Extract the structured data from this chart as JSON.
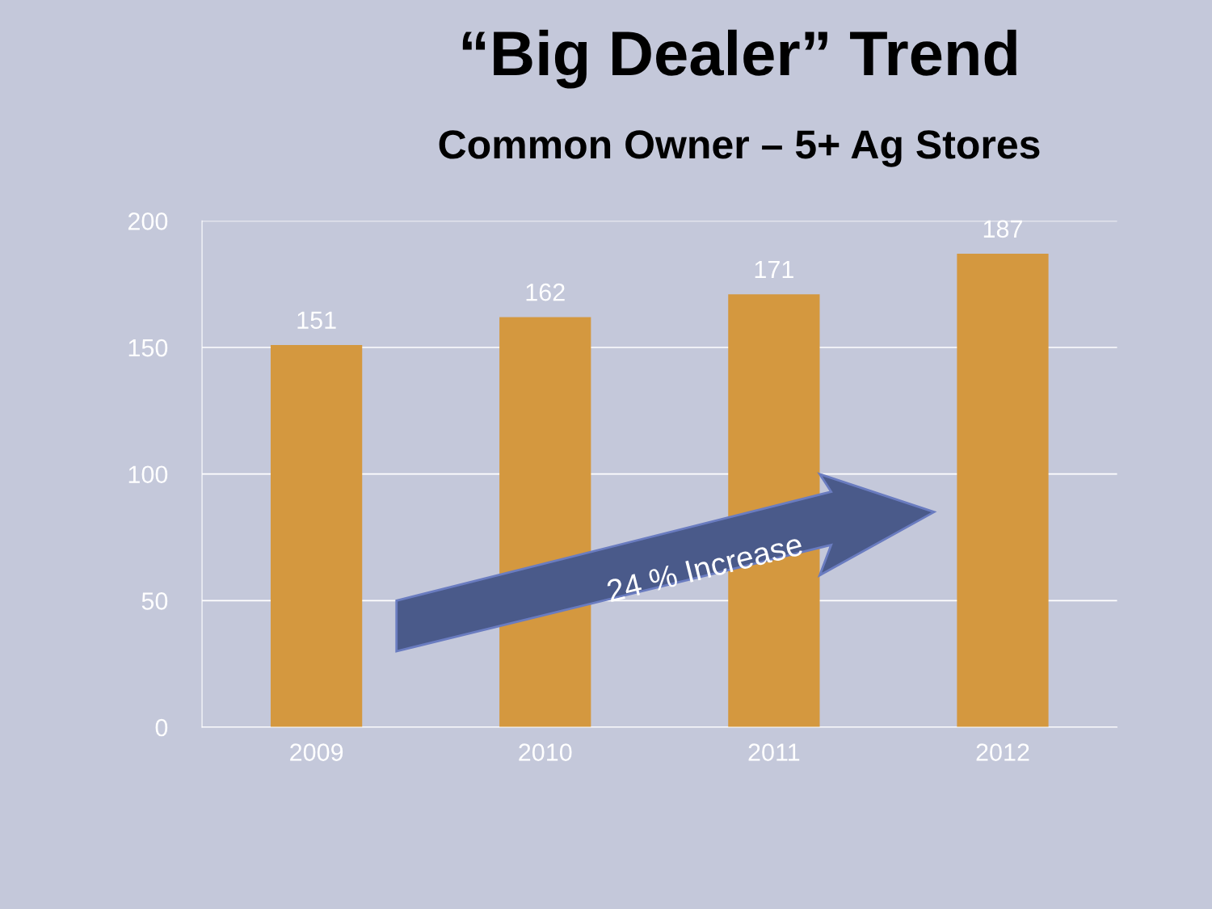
{
  "chart_data": {
    "type": "bar",
    "title": "“Big Dealer” Trend",
    "subtitle": "Common Owner – 5+ Ag Stores",
    "categories": [
      "2009",
      "2010",
      "2011",
      "2012"
    ],
    "values": [
      151,
      162,
      171,
      187
    ],
    "color": "#d4983f",
    "ylim": [
      0,
      200
    ],
    "yticks": [
      0,
      50,
      100,
      150,
      200
    ],
    "grid": "y",
    "data_labels": true,
    "annotations": [
      "24 % Increase"
    ]
  }
}
